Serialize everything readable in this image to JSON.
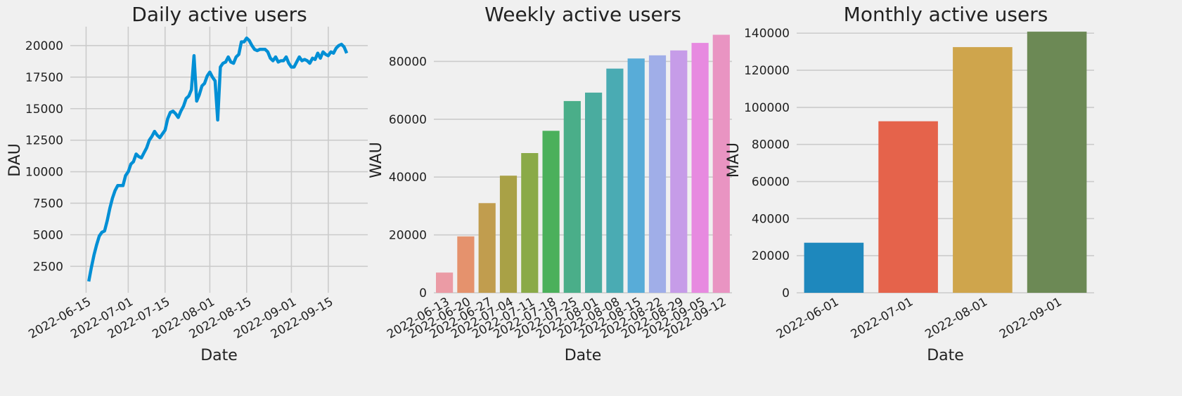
{
  "chart_data": [
    {
      "type": "line",
      "title": "Daily active users",
      "xlabel": "Date",
      "ylabel": "DAU",
      "color": "#008fd5",
      "grid": true,
      "x_ticks": [
        "2022-06-15",
        "2022-07-01",
        "2022-07-15",
        "2022-08-01",
        "2022-08-15",
        "2022-09-01",
        "2022-09-15"
      ],
      "y_ticks": [
        2500,
        5000,
        7500,
        10000,
        12500,
        15000,
        17500,
        20000
      ],
      "xlim": [
        "2022-06-09",
        "2022-09-30"
      ],
      "ylim": [
        400,
        21500
      ],
      "x_start": "2022-06-16",
      "values": [
        1300,
        2400,
        3400,
        4200,
        4900,
        5200,
        5300,
        6100,
        7100,
        7900,
        8500,
        8900,
        8900,
        8900,
        9700,
        10000,
        10600,
        10800,
        11400,
        11200,
        11100,
        11500,
        11900,
        12500,
        12800,
        13200,
        12900,
        12700,
        13000,
        13300,
        14200,
        14700,
        14800,
        14600,
        14300,
        14800,
        15200,
        15800,
        16000,
        16500,
        19200,
        15600,
        16100,
        16800,
        17000,
        17600,
        17900,
        17500,
        17200,
        14100,
        18300,
        18600,
        18700,
        19100,
        18700,
        18600,
        19100,
        19300,
        20300,
        20300,
        20600,
        20400,
        20000,
        19700,
        19600,
        19700,
        19700,
        19700,
        19500,
        19000,
        18800,
        19100,
        18700,
        18800,
        18800,
        19100,
        18600,
        18300,
        18300,
        18700,
        19100,
        18800,
        18900,
        18800,
        18600,
        19000,
        18900,
        19400,
        19000,
        19500,
        19300,
        19200,
        19500,
        19400,
        19800,
        20000,
        20100,
        19900,
        19400
      ]
    },
    {
      "type": "bar",
      "title": "Weekly active users",
      "xlabel": "Date",
      "ylabel": "WAU",
      "grid": true,
      "categories": [
        "2022-06-13",
        "2022-06-20",
        "2022-06-27",
        "2022-07-04",
        "2022-07-11",
        "2022-07-18",
        "2022-07-25",
        "2022-08-01",
        "2022-08-08",
        "2022-08-15",
        "2022-08-22",
        "2022-08-29",
        "2022-09-05",
        "2022-09-12"
      ],
      "values": [
        7000,
        19500,
        31000,
        40500,
        48300,
        56000,
        66300,
        69200,
        77500,
        81000,
        82100,
        83800,
        86400,
        89200
      ],
      "colors": [
        "#eb9ba5",
        "#e5926d",
        "#c19d4e",
        "#a9a146",
        "#8aaa48",
        "#4bb05b",
        "#4aae89",
        "#4aac9f",
        "#4aabb3",
        "#58acd8",
        "#a0aee8",
        "#c69ce8",
        "#e78ae0",
        "#e994c2"
      ],
      "y_ticks": [
        0,
        20000,
        40000,
        60000,
        80000
      ],
      "ylim": [
        0,
        92000
      ]
    },
    {
      "type": "bar",
      "title": "Monthly active users",
      "xlabel": "Date",
      "ylabel": "MAU",
      "grid": true,
      "categories": [
        "2022-06-01",
        "2022-07-01",
        "2022-08-01",
        "2022-09-01"
      ],
      "values": [
        27000,
        92500,
        132500,
        140800
      ],
      "colors": [
        "#1e88bd",
        "#e5634b",
        "#cfa54c",
        "#6c8955"
      ],
      "y_ticks": [
        0,
        20000,
        40000,
        60000,
        80000,
        100000,
        120000,
        140000
      ],
      "ylim": [
        0,
        143500
      ]
    }
  ]
}
